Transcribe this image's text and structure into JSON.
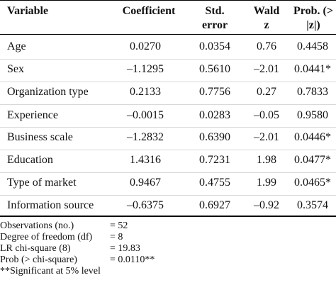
{
  "headers": {
    "variable": "Variable",
    "coefficient": "Coefficient",
    "std_error_line1": "Std.",
    "std_error_line2": "error",
    "wald_line1": "Wald",
    "wald_line2": "z",
    "prob_line1": "Prob. (>",
    "prob_line2": "|z|)"
  },
  "rows": [
    {
      "variable": "Age",
      "coefficient": "0.0270",
      "std_error": "0.0354",
      "wald_z": "0.76",
      "prob": "0.4458"
    },
    {
      "variable": "Sex",
      "coefficient": "–1.1295",
      "std_error": "0.5610",
      "wald_z": "–2.01",
      "prob": "0.0441*"
    },
    {
      "variable": "Organization type",
      "coefficient": "0.2133",
      "std_error": "0.7756",
      "wald_z": "0.27",
      "prob": "0.7833"
    },
    {
      "variable": "Experience",
      "coefficient": "–0.0015",
      "std_error": "0.0283",
      "wald_z": "–0.05",
      "prob": "0.9580"
    },
    {
      "variable": "Business scale",
      "coefficient": "–1.2832",
      "std_error": "0.6390",
      "wald_z": "–2.01",
      "prob": "0.0446*"
    },
    {
      "variable": "Education",
      "coefficient": "1.4316",
      "std_error": "0.7231",
      "wald_z": "1.98",
      "prob": "0.0477*"
    },
    {
      "variable": "Type of market",
      "coefficient": "0.9467",
      "std_error": "0.4755",
      "wald_z": "1.99",
      "prob": "0.0465*"
    },
    {
      "variable": "Information source",
      "coefficient": "–0.6375",
      "std_error": "0.6927",
      "wald_z": "–0.92",
      "prob": "0.3574"
    }
  ],
  "footer": [
    {
      "label": "Observations (no.)",
      "value": "= 52"
    },
    {
      "label": "Degree of freedom (df)",
      "value": "= 8"
    },
    {
      "label": "LR chi-square (8)",
      "value": "= 19.83"
    },
    {
      "label": "Prob (> chi-square)",
      "value": "= 0.0110**"
    }
  ],
  "note": "**Significant at 5% level"
}
